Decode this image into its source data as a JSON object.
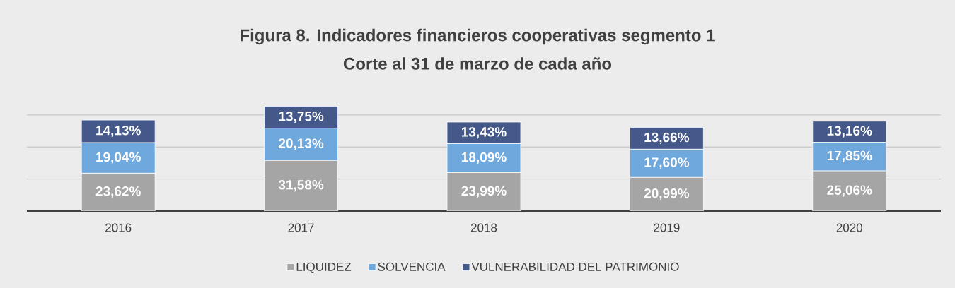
{
  "chart_data": {
    "type": "bar",
    "stacked": true,
    "title": "Figura 8. Indicadores financieros cooperativas segmento 1",
    "subtitle": "Corte al 31 de marzo de cada año",
    "categories": [
      "2016",
      "2017",
      "2018",
      "2019",
      "2020"
    ],
    "series": [
      {
        "name": "LIQUIDEZ",
        "color": "#a5a5a5",
        "values": [
          23.62,
          31.58,
          23.99,
          20.99,
          25.06
        ],
        "value_labels": [
          "23,62%",
          "31,58%",
          "23,99%",
          "20,99%",
          "25,06%"
        ]
      },
      {
        "name": "SOLVENCIA",
        "color": "#6fa8dc",
        "values": [
          19.04,
          20.13,
          18.09,
          17.6,
          17.85
        ],
        "value_labels": [
          "19,04%",
          "20,13%",
          "18,09%",
          "17,60%",
          "17,85%"
        ]
      },
      {
        "name": "VULNERABILIDAD DEL PATRIMONIO",
        "color": "#44598a",
        "values": [
          14.13,
          13.75,
          13.43,
          13.66,
          13.16
        ],
        "value_labels": [
          "14,13%",
          "13,75%",
          "13,43%",
          "13,66%",
          "13,16%"
        ]
      }
    ],
    "yticks": [
      {
        "value": 20,
        "label": null
      },
      {
        "value": 40,
        "label": null
      },
      {
        "value": 60,
        "label": null
      }
    ],
    "tick_labels": "x",
    "grid": "y",
    "legend": "bottom"
  }
}
